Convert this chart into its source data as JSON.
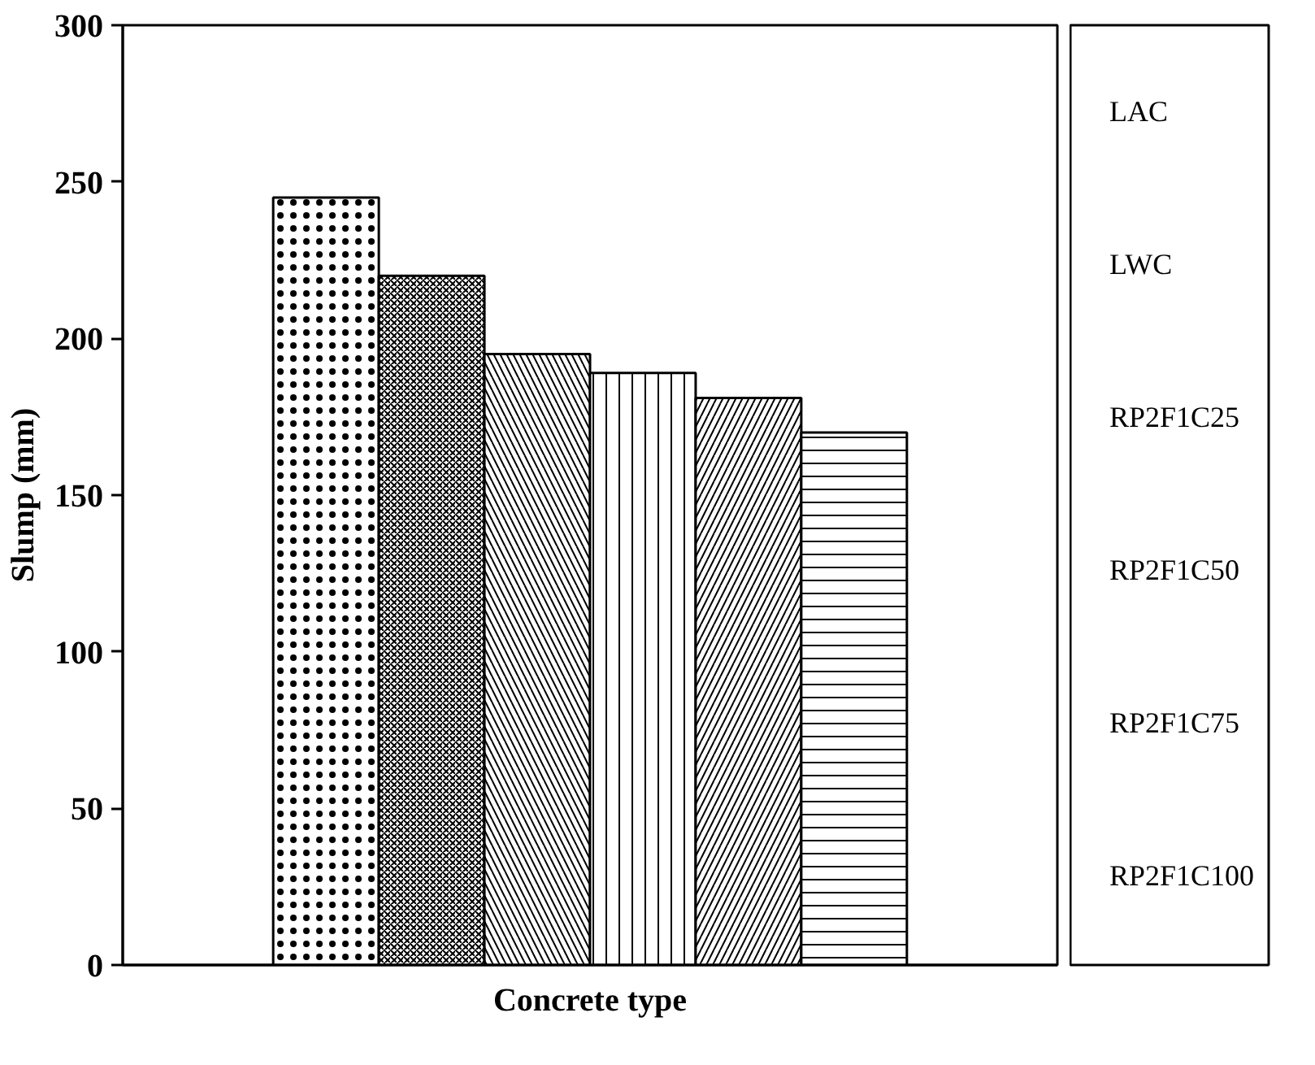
{
  "chart_data": {
    "type": "bar",
    "xlabel": "Concrete type",
    "ylabel": "Slump (mm)",
    "categories": [
      null
    ],
    "series": [
      {
        "name": "LAC",
        "color": "#ffffff",
        "values": [
          245
        ]
      },
      {
        "name": "LWC",
        "color": "#ffffff",
        "values": [
          220
        ]
      },
      {
        "name": "RP2F1C25",
        "color": "#ffffff",
        "values": [
          195
        ]
      },
      {
        "name": "RP2F1C50",
        "color": "#ffffff",
        "values": [
          189
        ]
      },
      {
        "name": "RP2F1C75",
        "color": "#ffffff",
        "values": [
          181
        ]
      },
      {
        "name": "RP2F1C100",
        "color": "#ffffff",
        "values": [
          170
        ]
      }
    ],
    "ylim": [
      0,
      300
    ],
    "yticks": [
      0,
      50,
      100,
      150,
      200,
      250,
      300
    ],
    "tick_labels": "y",
    "grid": false,
    "legend": "right"
  }
}
